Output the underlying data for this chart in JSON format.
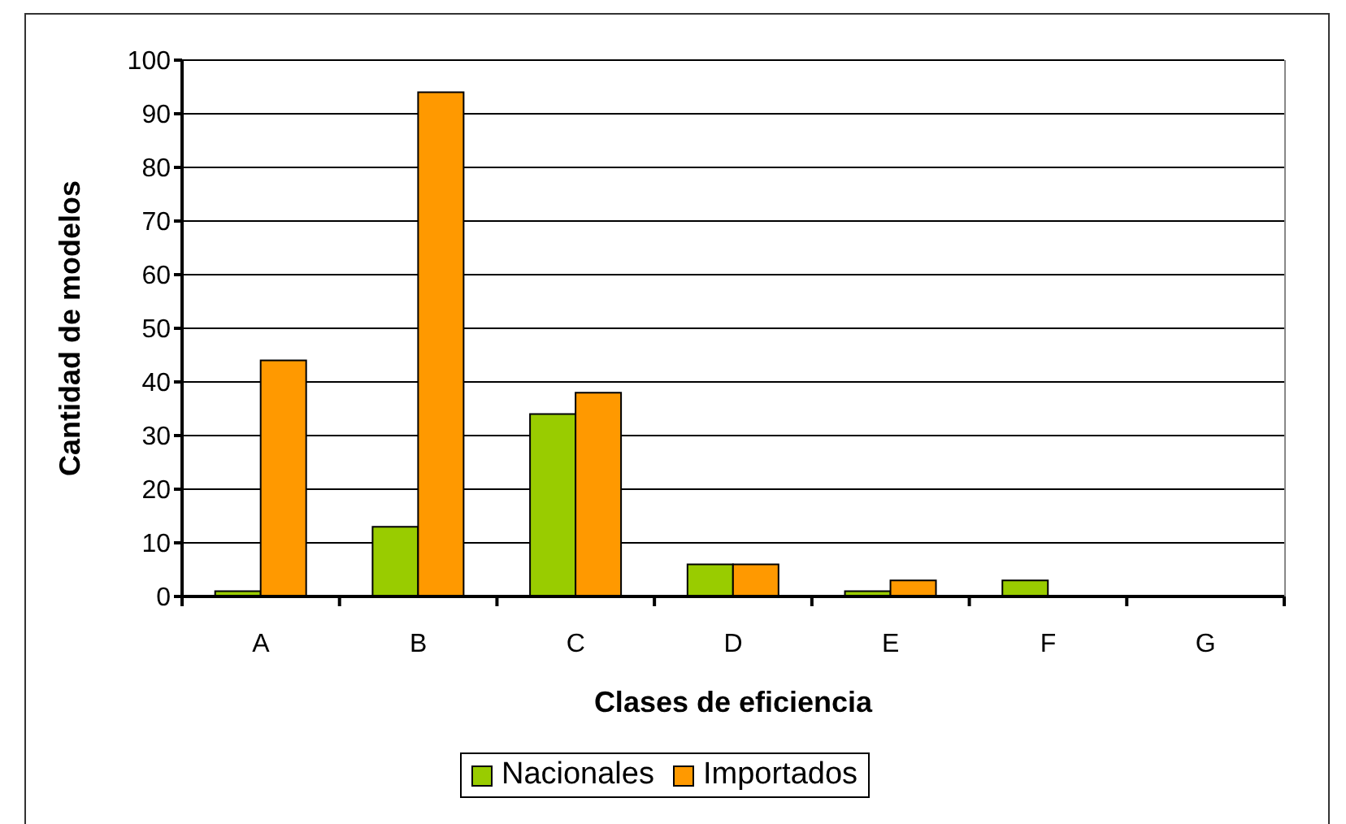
{
  "chart_data": {
    "type": "bar",
    "xlabel": "Clases de eficiencia",
    "ylabel": "Cantidad de modelos",
    "categories": [
      "A",
      "B",
      "C",
      "D",
      "E",
      "F",
      "G"
    ],
    "series": [
      {
        "name": "Nacionales",
        "color": "#99cc00",
        "values": [
          1,
          13,
          34,
          6,
          1,
          3,
          0
        ]
      },
      {
        "name": "Importados",
        "color": "#ff9900",
        "values": [
          44,
          94,
          38,
          6,
          3,
          0,
          0
        ]
      }
    ],
    "ylim": [
      0,
      100
    ],
    "yticks": [
      0,
      10,
      20,
      30,
      40,
      50,
      60,
      70,
      80,
      90,
      100
    ],
    "grid": "y",
    "legend": "bottom"
  }
}
